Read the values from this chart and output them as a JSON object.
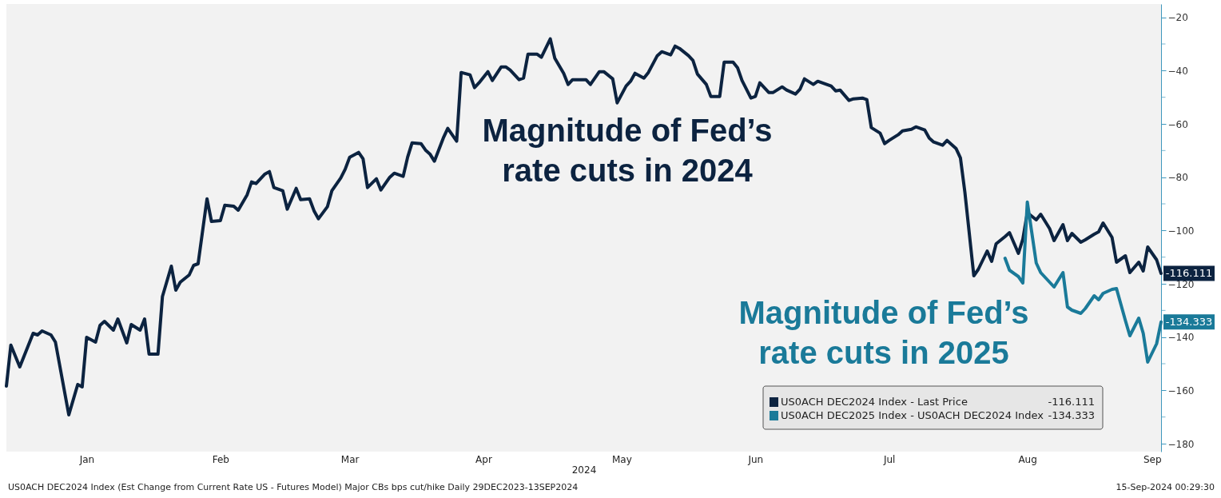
{
  "chart_data": {
    "type": "line",
    "xlabel": "2024",
    "xlim": [
      "2023-12-29",
      "2024-09-13"
    ],
    "xticks": [
      {
        "value": "2024-01-16",
        "label": "Jan"
      },
      {
        "value": "2024-02-15",
        "label": "Feb"
      },
      {
        "value": "2024-03-15",
        "label": "Mar"
      },
      {
        "value": "2024-04-14",
        "label": "Apr"
      },
      {
        "value": "2024-05-15",
        "label": "May"
      },
      {
        "value": "2024-06-14",
        "label": "Jun"
      },
      {
        "value": "2024-07-14",
        "label": "Jul"
      },
      {
        "value": "2024-08-14",
        "label": "Aug"
      },
      {
        "value": "2024-09-13",
        "label": "Sep"
      }
    ],
    "ylim": [
      -183,
      -15
    ],
    "yticks": [
      -20,
      {
        "value": -30,
        "label": null
      },
      -40,
      {
        "value": -50,
        "label": null
      },
      -60,
      {
        "value": -70,
        "label": null
      },
      -80,
      {
        "value": -90,
        "label": null
      },
      -100,
      {
        "value": -110,
        "label": null
      },
      -120,
      {
        "value": -130,
        "label": null
      },
      -140,
      {
        "value": -150,
        "label": null
      },
      -160,
      {
        "value": -170,
        "label": null
      },
      -180
    ],
    "grid": false,
    "legend": "bottom right",
    "marker": "none",
    "line_style": "solid",
    "series": [
      {
        "name": "US0ACH DEC2024 Index - Last Price",
        "color": "#0c2340",
        "x": [
          "2023-12-29",
          "2023-12-30",
          "2024-01-01",
          "2024-01-02",
          "2024-01-04",
          "2024-01-05",
          "2024-01-06",
          "2024-01-08",
          "2024-01-09",
          "2024-01-12",
          "2024-01-14",
          "2024-01-15",
          "2024-01-16",
          "2024-01-18",
          "2024-01-19",
          "2024-01-20",
          "2024-01-22",
          "2024-01-23",
          "2024-01-25",
          "2024-01-26",
          "2024-01-28",
          "2024-01-29",
          "2024-01-30",
          "2024-02-01",
          "2024-02-02",
          "2024-02-04",
          "2024-02-05",
          "2024-02-06",
          "2024-02-08",
          "2024-02-09",
          "2024-02-10",
          "2024-02-12",
          "2024-02-13",
          "2024-02-15",
          "2024-02-16",
          "2024-02-18",
          "2024-02-19",
          "2024-02-21",
          "2024-02-22",
          "2024-02-23",
          "2024-02-25",
          "2024-02-26",
          "2024-02-27",
          "2024-02-29",
          "2024-03-01",
          "2024-03-03",
          "2024-03-04",
          "2024-03-06",
          "2024-03-07",
          "2024-03-08",
          "2024-03-10",
          "2024-03-11",
          "2024-03-13",
          "2024-03-14",
          "2024-03-15",
          "2024-03-17",
          "2024-03-18",
          "2024-03-19",
          "2024-03-21",
          "2024-03-22",
          "2024-03-24",
          "2024-03-25",
          "2024-03-27",
          "2024-03-28",
          "2024-03-29",
          "2024-03-31",
          "2024-04-01",
          "2024-04-02",
          "2024-04-03",
          "2024-04-05",
          "2024-04-06",
          "2024-04-08",
          "2024-04-09",
          "2024-04-11",
          "2024-04-12",
          "2024-04-13",
          "2024-04-15",
          "2024-04-16",
          "2024-04-18",
          "2024-04-19",
          "2024-04-20",
          "2024-04-22",
          "2024-04-23",
          "2024-04-24",
          "2024-04-26",
          "2024-04-27",
          "2024-04-29",
          "2024-04-30",
          "2024-05-02",
          "2024-05-03",
          "2024-05-04",
          "2024-05-07",
          "2024-05-08",
          "2024-05-10",
          "2024-05-11",
          "2024-05-13",
          "2024-05-14",
          "2024-05-16",
          "2024-05-17",
          "2024-05-18",
          "2024-05-20",
          "2024-05-21",
          "2024-05-23",
          "2024-05-24",
          "2024-05-26",
          "2024-05-27",
          "2024-05-28",
          "2024-05-30",
          "2024-05-31",
          "2024-06-01",
          "2024-06-03",
          "2024-06-04",
          "2024-06-06",
          "2024-06-07",
          "2024-06-09",
          "2024-06-10",
          "2024-06-11",
          "2024-06-13",
          "2024-06-14",
          "2024-06-15",
          "2024-06-17",
          "2024-06-18",
          "2024-06-20",
          "2024-06-21",
          "2024-06-23",
          "2024-06-24",
          "2024-06-25",
          "2024-06-27",
          "2024-06-28",
          "2024-06-30",
          "2024-07-01",
          "2024-07-02",
          "2024-07-03",
          "2024-07-05",
          "2024-07-06",
          "2024-07-08",
          "2024-07-09",
          "2024-07-10",
          "2024-07-12",
          "2024-07-13",
          "2024-07-14",
          "2024-07-16",
          "2024-07-17",
          "2024-07-19",
          "2024-07-20",
          "2024-07-22",
          "2024-07-23",
          "2024-07-24",
          "2024-07-26",
          "2024-07-27",
          "2024-07-29",
          "2024-07-30",
          "2024-07-31",
          "2024-08-02",
          "2024-08-03",
          "2024-08-05",
          "2024-08-06",
          "2024-08-07",
          "2024-08-09",
          "2024-08-10",
          "2024-08-12",
          "2024-08-13",
          "2024-08-14",
          "2024-08-16",
          "2024-08-17",
          "2024-08-19",
          "2024-08-20",
          "2024-08-22",
          "2024-08-23",
          "2024-08-24",
          "2024-08-26",
          "2024-08-27",
          "2024-08-29",
          "2024-08-30",
          "2024-08-31",
          "2024-09-02",
          "2024-09-03",
          "2024-09-05",
          "2024-09-06",
          "2024-09-08",
          "2024-09-09",
          "2024-09-10",
          "2024-09-12",
          "2024-09-13"
        ],
        "values": [
          -158.4,
          -143,
          -151.2,
          -147,
          -138.6,
          -139.2,
          -137.7,
          -139.2,
          -141.9,
          -169.2,
          -157.8,
          -158.7,
          -140.1,
          -141.9,
          -135.6,
          -134.1,
          -137.4,
          -133.2,
          -142.2,
          -135.3,
          -137.4,
          -133.2,
          -146.4,
          -146.4,
          -124.8,
          -113.4,
          -122.4,
          -119.4,
          -116.7,
          -113.1,
          -112.5,
          -88.1,
          -96.6,
          -96.3,
          -90.5,
          -90.9,
          -92.4,
          -86.6,
          -81.8,
          -82.4,
          -78.8,
          -77.9,
          -83.9,
          -85.1,
          -92,
          -84.2,
          -88.4,
          -88.1,
          -92.6,
          -95.6,
          -91.1,
          -85.1,
          -80.3,
          -77,
          -72.5,
          -70.7,
          -73.1,
          -83.9,
          -80.6,
          -84.8,
          -80,
          -78.5,
          -79.7,
          -72.5,
          -67.1,
          -67.4,
          -69.8,
          -71.3,
          -74,
          -65.3,
          -61.7,
          -66.5,
          -40.7,
          -41.6,
          -46.4,
          -44.6,
          -40.4,
          -43.7,
          -38.6,
          -38.6,
          -39.8,
          -43.4,
          -42.8,
          -33.8,
          -33.8,
          -35,
          -28.1,
          -35.3,
          -41,
          -45.2,
          -43.4,
          -43.4,
          -45.2,
          -40.4,
          -40.4,
          -43.1,
          -52.1,
          -45.8,
          -44,
          -41,
          -42.8,
          -40.7,
          -34.4,
          -32.9,
          -34.1,
          -30.8,
          -31.7,
          -34.4,
          -36.2,
          -41.3,
          -45.2,
          -49.7,
          -49.7,
          -36.8,
          -36.8,
          -38.9,
          -43.7,
          -50.3,
          -49.7,
          -44.6,
          -48.2,
          -48.2,
          -46.1,
          -47.3,
          -48.8,
          -47,
          -43.1,
          -45.2,
          -44,
          -45.2,
          -45.8,
          -47.6,
          -47.3,
          -51.2,
          -50.6,
          -50.3,
          -50.9,
          -61.4,
          -63.5,
          -67.4,
          -66.2,
          -64.1,
          -62.6,
          -62,
          -61.1,
          -62.3,
          -65.3,
          -66.8,
          -68,
          -66.2,
          -69.2,
          -72.8,
          -85.7,
          -117,
          -114.6,
          -107.7,
          -111.6,
          -105,
          -102.3,
          -100.8,
          -108.6,
          -103.2,
          -93.3,
          -96,
          -93.9,
          -99.3,
          -103.8,
          -97.8,
          -103.8,
          -101.1,
          -104.4,
          -103.5,
          -101.4,
          -100.5,
          -97.2,
          -102.6,
          -111.9,
          -109.5,
          -115.8,
          -111.9,
          -115.2,
          -106.2,
          -111,
          -116.111
        ]
      },
      {
        "name": "US0ACH DEC2025 Index - US0ACH DEC2024 Index",
        "color": "#1a7a99",
        "x": [
          "2024-08-09",
          "2024-08-10",
          "2024-08-12",
          "2024-08-13",
          "2024-08-14",
          "2024-08-16",
          "2024-08-17",
          "2024-08-19",
          "2024-08-20",
          "2024-08-22",
          "2024-08-23",
          "2024-08-24",
          "2024-08-26",
          "2024-08-27",
          "2024-08-29",
          "2024-08-30",
          "2024-08-31",
          "2024-09-02",
          "2024-09-03",
          "2024-09-05",
          "2024-09-06",
          "2024-09-08",
          "2024-09-09",
          "2024-09-10",
          "2024-09-12",
          "2024-09-13"
        ],
        "values": [
          -110.4,
          -114.9,
          -117.3,
          -119.7,
          -89.3,
          -112.2,
          -115.8,
          -119.4,
          -121.2,
          -115.8,
          -128.7,
          -129.9,
          -131.1,
          -129.3,
          -124.5,
          -126,
          -123.6,
          -122.1,
          -121.8,
          -133.8,
          -139.5,
          -132.9,
          -138.6,
          -149.4,
          -142.5,
          -134.333
        ]
      }
    ],
    "annotations": [
      "Magnitude of Fed’s\nrate cuts in 2024",
      "Magnitude of Fed’s\nrate cuts in 2025",
      {
        "text": "-116.111",
        "x": "2024-09-13",
        "y": -116.111
      },
      {
        "text": "-134.333",
        "x": "2024-09-13",
        "y": -134.333
      },
      "US0ACH DEC2024 Index (Est Change from Current Rate US - Futures Model) Major CBs bps cut/hike  Daily 29DEC2023-13SEP2024",
      "15-Sep-2024 00:29:30"
    ]
  }
}
